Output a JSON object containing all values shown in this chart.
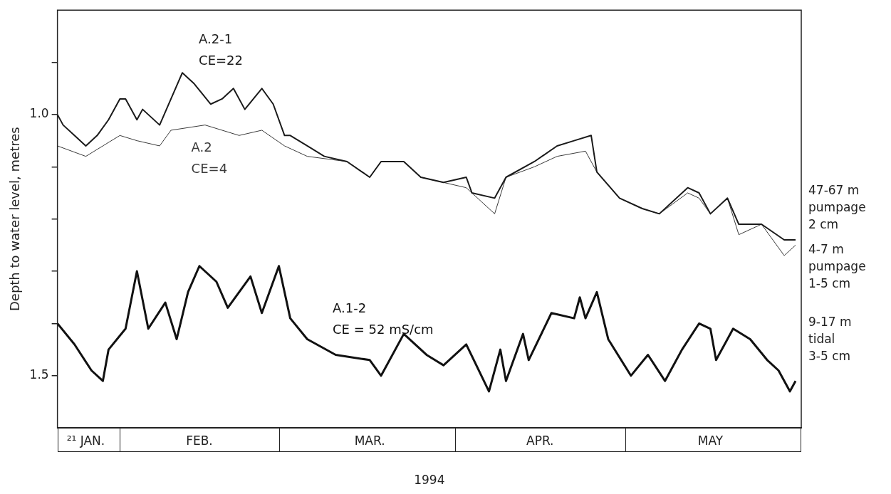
{
  "chart_data": {
    "type": "line",
    "xlabel": "1994",
    "ylabel": "Depth to water level, metres",
    "xlim": [
      "1994-01-21",
      "1994-06-01"
    ],
    "xticks": [
      {
        "value": "1994-01-26",
        "label": "²¹ JAN."
      },
      {
        "value": "1994-02-15",
        "label": "FEB."
      },
      {
        "value": "1994-03-17",
        "label": "MAR."
      },
      {
        "value": "1994-04-16",
        "label": "APR."
      },
      {
        "value": "1994-05-16",
        "label": "MAY"
      }
    ],
    "ylim": [
      1.6,
      0.8
    ],
    "yticks": [
      {
        "value": 0.9,
        "label": null
      },
      {
        "value": 1.0,
        "label": "1.0"
      },
      {
        "value": 1.1,
        "label": null
      },
      {
        "value": 1.2,
        "label": null
      },
      {
        "value": 1.3,
        "label": null
      },
      {
        "value": 1.4,
        "label": null
      },
      {
        "value": 1.5,
        "label": "1.5"
      }
    ],
    "grid": false,
    "legend": false,
    "marker": "none",
    "line_style": "solid",
    "series": [
      {
        "name": "A.2-1\nCE=22",
        "color": "#1a1a1a",
        "x": [
          "1994-01-21",
          "1994-01-22",
          "1994-01-24",
          "1994-01-26",
          "1994-01-28",
          "1994-01-30",
          "1994-02-01",
          "1994-02-02",
          "1994-02-04",
          "1994-02-05",
          "1994-02-08",
          "1994-02-10",
          "1994-02-12",
          "1994-02-14",
          "1994-02-17",
          "1994-02-19",
          "1994-02-21",
          "1994-02-23",
          "1994-02-26",
          "1994-02-28",
          "1994-03-02",
          "1994-03-03",
          "1994-03-06",
          "1994-03-09",
          "1994-03-13",
          "1994-03-17",
          "1994-03-19",
          "1994-03-23",
          "1994-03-26",
          "1994-03-30",
          "1994-04-03",
          "1994-04-04",
          "1994-04-08",
          "1994-04-10",
          "1994-04-15",
          "1994-04-19",
          "1994-04-22",
          "1994-04-25",
          "1994-04-26",
          "1994-04-30",
          "1994-05-04",
          "1994-05-07",
          "1994-05-12",
          "1994-05-14",
          "1994-05-16",
          "1994-05-19",
          "1994-05-21",
          "1994-05-25",
          "1994-05-29",
          "1994-05-31"
        ],
        "values": [
          1.0,
          1.02,
          1.04,
          1.06,
          1.04,
          1.01,
          0.97,
          0.97,
          1.01,
          0.99,
          1.02,
          0.97,
          0.92,
          0.94,
          0.98,
          0.97,
          0.95,
          0.99,
          0.95,
          0.98,
          1.04,
          1.04,
          1.06,
          1.08,
          1.09,
          1.12,
          1.09,
          1.09,
          1.12,
          1.13,
          1.12,
          1.15,
          1.16,
          1.12,
          1.09,
          1.06,
          1.05,
          1.04,
          1.11,
          1.16,
          1.18,
          1.19,
          1.14,
          1.15,
          1.19,
          1.16,
          1.21,
          1.21,
          1.24,
          1.24
        ]
      },
      {
        "name": "A.2\nCE=4",
        "color": "#3a3a3a",
        "x": [
          "1994-01-21",
          "1994-01-26",
          "1994-01-29",
          "1994-02-01",
          "1994-02-04",
          "1994-02-08",
          "1994-02-10",
          "1994-02-16",
          "1994-02-22",
          "1994-02-26",
          "1994-03-02",
          "1994-03-06",
          "1994-03-13",
          "1994-03-17",
          "1994-03-19",
          "1994-03-23",
          "1994-03-26",
          "1994-03-30",
          "1994-04-03",
          "1994-04-08",
          "1994-04-10",
          "1994-04-15",
          "1994-04-19",
          "1994-04-24",
          "1994-04-26",
          "1994-04-30",
          "1994-05-04",
          "1994-05-07",
          "1994-05-12",
          "1994-05-14",
          "1994-05-16",
          "1994-05-19",
          "1994-05-21",
          "1994-05-25",
          "1994-05-29",
          "1994-05-31"
        ],
        "values": [
          1.06,
          1.08,
          1.06,
          1.04,
          1.05,
          1.06,
          1.03,
          1.02,
          1.04,
          1.03,
          1.06,
          1.08,
          1.09,
          1.12,
          1.09,
          1.09,
          1.12,
          1.13,
          1.14,
          1.19,
          1.12,
          1.1,
          1.08,
          1.07,
          1.11,
          1.16,
          1.18,
          1.19,
          1.15,
          1.16,
          1.19,
          1.16,
          1.23,
          1.21,
          1.27,
          1.25
        ]
      },
      {
        "name": "A.1-2\nCE = 52 mS/cm",
        "color": "#111111",
        "x": [
          "1994-01-21",
          "1994-01-24",
          "1994-01-27",
          "1994-01-29",
          "1994-01-30",
          "1994-02-02",
          "1994-02-04",
          "1994-02-06",
          "1994-02-09",
          "1994-02-11",
          "1994-02-13",
          "1994-02-15",
          "1994-02-18",
          "1994-02-20",
          "1994-02-24",
          "1994-02-26",
          "1994-03-01",
          "1994-03-03",
          "1994-03-06",
          "1994-03-11",
          "1994-03-17",
          "1994-03-19",
          "1994-03-23",
          "1994-03-27",
          "1994-03-30",
          "1994-04-03",
          "1994-04-07",
          "1994-04-09",
          "1994-04-10",
          "1994-04-13",
          "1994-04-14",
          "1994-04-18",
          "1994-04-22",
          "1994-04-23",
          "1994-04-24",
          "1994-04-26",
          "1994-04-28",
          "1994-05-02",
          "1994-05-05",
          "1994-05-08",
          "1994-05-11",
          "1994-05-14",
          "1994-05-16",
          "1994-05-17",
          "1994-05-20",
          "1994-05-23",
          "1994-05-26",
          "1994-05-28",
          "1994-05-30",
          "1994-05-31"
        ],
        "values": [
          1.4,
          1.44,
          1.49,
          1.51,
          1.45,
          1.41,
          1.3,
          1.41,
          1.36,
          1.43,
          1.34,
          1.29,
          1.32,
          1.37,
          1.31,
          1.38,
          1.29,
          1.39,
          1.43,
          1.46,
          1.47,
          1.5,
          1.42,
          1.46,
          1.48,
          1.44,
          1.53,
          1.45,
          1.51,
          1.42,
          1.47,
          1.38,
          1.39,
          1.35,
          1.39,
          1.34,
          1.43,
          1.5,
          1.46,
          1.51,
          1.45,
          1.4,
          1.41,
          1.47,
          1.41,
          1.43,
          1.47,
          1.49,
          1.53,
          1.51
        ]
      }
    ],
    "annotations": [
      "47-67 m\npumpage\n2 cm",
      "4-7 m\npumpage\n1-5 cm",
      "9-17 m\ntidal\n3-5 cm"
    ]
  }
}
